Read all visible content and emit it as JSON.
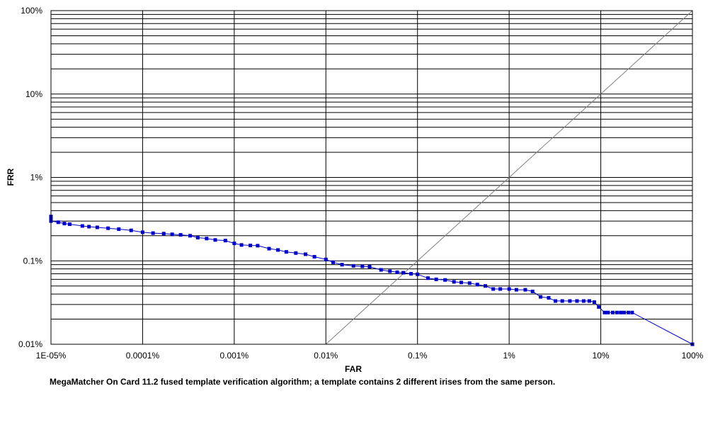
{
  "chart_data": {
    "type": "line",
    "xlabel": "FAR",
    "ylabel": "FRR",
    "x_scale": "log",
    "y_scale": "log",
    "xlim": [
      1e-05,
      100
    ],
    "ylim": [
      0.01,
      100
    ],
    "x_unit": "percent",
    "y_unit": "percent",
    "x_tick_values": [
      1e-05,
      0.0001,
      0.001,
      0.01,
      0.1,
      1,
      10,
      100
    ],
    "x_tick_labels": [
      "1E-05%",
      "0.0001%",
      "0.001%",
      "0.01%",
      "0.1%",
      "1%",
      "10%",
      "100%"
    ],
    "y_tick_values": [
      0.01,
      0.1,
      1,
      10,
      100
    ],
    "y_tick_labels": [
      "0.01%",
      "0.1%",
      "1%",
      "10%",
      "100%"
    ],
    "grid": true,
    "reference_line": "FAR = FRR diagonal",
    "series_color": "#0000cc",
    "reference_line_color": "#808080",
    "series": [
      {
        "x": [
          1e-05,
          1e-05,
          1e-05,
          1.2e-05,
          1.4e-05,
          1.6e-05,
          2.2e-05,
          2.6e-05,
          3.2e-05,
          4.2e-05,
          5.5e-05,
          7.5e-05,
          0.0001,
          0.00013,
          0.00017,
          0.00021,
          0.00026,
          0.00033,
          0.0004,
          0.0005,
          0.00062,
          0.0008,
          0.001,
          0.0012,
          0.0015,
          0.0018,
          0.0024,
          0.003,
          0.0037,
          0.0047,
          0.006,
          0.0075,
          0.01,
          0.012,
          0.015,
          0.02,
          0.025,
          0.03,
          0.04,
          0.05,
          0.06,
          0.07,
          0.085,
          0.1,
          0.13,
          0.16,
          0.2,
          0.25,
          0.3,
          0.37,
          0.45,
          0.55,
          0.67,
          0.8,
          1,
          1.2,
          1.5,
          1.8,
          2.2,
          2.7,
          3.2,
          3.8,
          4.6,
          5.5,
          6.5,
          7.5,
          8.5,
          9.5,
          11,
          12,
          13.5,
          15,
          16.5,
          18,
          20,
          22,
          100
        ],
        "y": [
          0.34,
          0.32,
          0.3,
          0.29,
          0.28,
          0.275,
          0.262,
          0.257,
          0.252,
          0.246,
          0.24,
          0.232,
          0.22,
          0.215,
          0.212,
          0.208,
          0.205,
          0.2,
          0.19,
          0.185,
          0.178,
          0.175,
          0.162,
          0.155,
          0.153,
          0.152,
          0.14,
          0.135,
          0.128,
          0.124,
          0.12,
          0.112,
          0.104,
          0.096,
          0.09,
          0.087,
          0.086,
          0.085,
          0.078,
          0.075,
          0.073,
          0.072,
          0.07,
          0.069,
          0.062,
          0.06,
          0.059,
          0.056,
          0.055,
          0.054,
          0.052,
          0.05,
          0.046,
          0.046,
          0.046,
          0.045,
          0.045,
          0.043,
          0.037,
          0.036,
          0.033,
          0.033,
          0.033,
          0.033,
          0.033,
          0.033,
          0.032,
          0.028,
          0.024,
          0.024,
          0.024,
          0.024,
          0.024,
          0.024,
          0.024,
          0.024,
          0.01
        ]
      }
    ]
  },
  "caption": "MegaMatcher On Card 11.2 fused template verification algorithm; a template contains 2 different irises from the same person."
}
